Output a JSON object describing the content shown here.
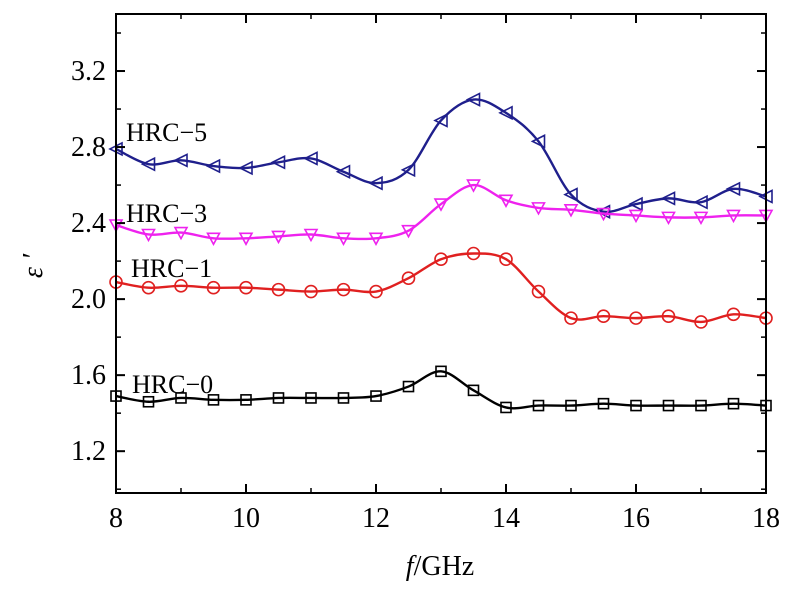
{
  "chart_data": {
    "type": "line",
    "xlabel_italic": "f",
    "xlabel_unit": "/GHz",
    "ylabel": "ε ′",
    "xlim": [
      8,
      18
    ],
    "ylim": [
      0.98,
      3.5
    ],
    "x_ticks": [
      "8",
      "10",
      "12",
      "14",
      "16",
      "18"
    ],
    "x_tick_values": [
      8,
      10,
      12,
      14,
      16,
      18
    ],
    "y_ticks": [
      "1.2",
      "1.6",
      "2.0",
      "2.4",
      "2.8",
      "3.2"
    ],
    "y_tick_values": [
      1.2,
      1.6,
      2.0,
      2.4,
      2.8,
      3.2
    ],
    "grid": false,
    "series": [
      {
        "name": "HRC-5",
        "label": "HRC−5",
        "color": "#1f1f8c",
        "marker": "triangle-left",
        "x": [
          8,
          8.5,
          9,
          9.5,
          10,
          10.5,
          11,
          11.5,
          12,
          12.5,
          13,
          13.5,
          14,
          14.5,
          15,
          15.5,
          16,
          16.5,
          17,
          17.5,
          18
        ],
        "values": [
          2.79,
          2.71,
          2.73,
          2.7,
          2.69,
          2.72,
          2.74,
          2.67,
          2.61,
          2.68,
          2.94,
          3.05,
          2.98,
          2.83,
          2.55,
          2.46,
          2.5,
          2.53,
          2.51,
          2.58,
          2.54
        ]
      },
      {
        "name": "HRC-3",
        "label": "HRC−3",
        "color": "#ee22ee",
        "marker": "triangle-down",
        "x": [
          8,
          8.5,
          9,
          9.5,
          10,
          10.5,
          11,
          11.5,
          12,
          12.5,
          13,
          13.5,
          14,
          14.5,
          15,
          15.5,
          16,
          16.5,
          17,
          17.5,
          18
        ],
        "values": [
          2.39,
          2.34,
          2.35,
          2.32,
          2.32,
          2.33,
          2.34,
          2.32,
          2.32,
          2.36,
          2.5,
          2.6,
          2.52,
          2.48,
          2.47,
          2.45,
          2.44,
          2.43,
          2.43,
          2.44,
          2.44
        ]
      },
      {
        "name": "HRC-1",
        "label": "HRC−1",
        "color": "#e02020",
        "marker": "circle",
        "x": [
          8,
          8.5,
          9,
          9.5,
          10,
          10.5,
          11,
          11.5,
          12,
          12.5,
          13,
          13.5,
          14,
          14.5,
          15,
          15.5,
          16,
          16.5,
          17,
          17.5,
          18
        ],
        "values": [
          2.09,
          2.06,
          2.07,
          2.06,
          2.06,
          2.05,
          2.04,
          2.05,
          2.04,
          2.11,
          2.21,
          2.24,
          2.21,
          2.04,
          1.9,
          1.91,
          1.9,
          1.91,
          1.88,
          1.92,
          1.9
        ]
      },
      {
        "name": "HRC-0",
        "label": "HRC−0",
        "color": "#000000",
        "marker": "square",
        "x": [
          8,
          8.5,
          9,
          9.5,
          10,
          10.5,
          11,
          11.5,
          12,
          12.5,
          13,
          13.5,
          14,
          14.5,
          15,
          15.5,
          16,
          16.5,
          17,
          17.5,
          18
        ],
        "values": [
          1.49,
          1.46,
          1.48,
          1.47,
          1.47,
          1.48,
          1.48,
          1.48,
          1.49,
          1.54,
          1.62,
          1.52,
          1.43,
          1.44,
          1.44,
          1.45,
          1.44,
          1.44,
          1.44,
          1.45,
          1.44
        ]
      }
    ]
  }
}
